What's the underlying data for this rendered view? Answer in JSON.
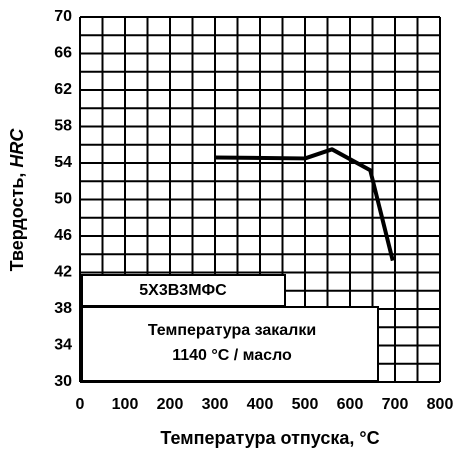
{
  "chart_data": {
    "type": "line",
    "x_label": "Температура отпуска, °C",
    "y_label": [
      "Твердость,",
      "HRC"
    ],
    "x": [
      300,
      500,
      560,
      645,
      695
    ],
    "series": [
      {
        "color": "#000000",
        "values": [
          54.6,
          54.5,
          55.5,
          53.2,
          43.3
        ]
      }
    ],
    "xlim": [
      0,
      800
    ],
    "xticks": [
      0,
      100,
      200,
      300,
      400,
      500,
      600,
      700,
      800
    ],
    "ylim": [
      30,
      70
    ],
    "yticks": [
      30,
      34,
      38,
      42,
      46,
      50,
      54,
      58,
      62,
      66,
      70
    ],
    "grid": true,
    "annotations": [
      "5Х3В3МФС",
      "Температура закалки",
      "1140 °C / масло"
    ]
  }
}
